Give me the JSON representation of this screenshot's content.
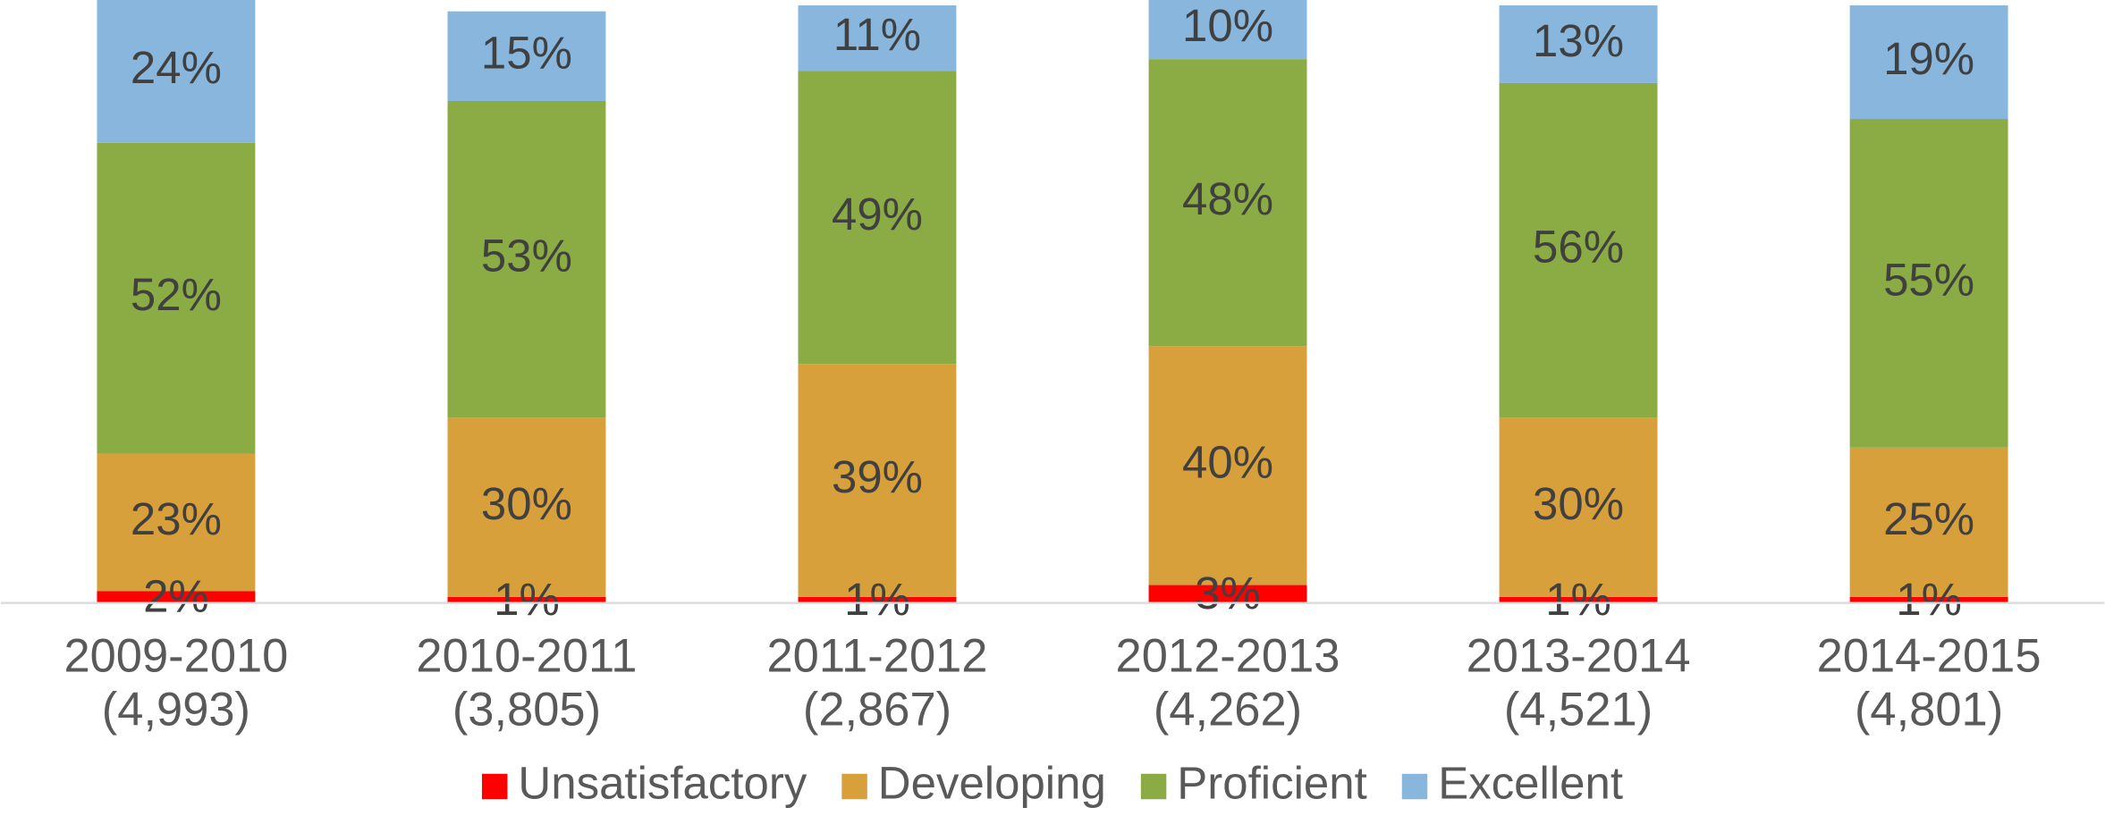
{
  "chart_data": {
    "type": "stacked_bar",
    "categories": [
      [
        "2009-2010",
        "(4,993)"
      ],
      [
        "2010-2011",
        "(3,805)"
      ],
      [
        "2011-2012",
        "(2,867)"
      ],
      [
        "2012-2013",
        "(4,262)"
      ],
      [
        "2013-2014",
        "(4,521)"
      ],
      [
        "2014-2015",
        "(4,801)"
      ]
    ],
    "ylim": [
      0,
      100
    ],
    "legend": "bottom",
    "series": [
      {
        "name": "Unsatisfactory",
        "color": "#ff0000",
        "values": [
          2,
          1,
          1,
          3,
          1,
          1
        ],
        "value_labels": [
          "2%",
          "1%",
          "1%",
          "3%",
          "1%",
          "1%"
        ]
      },
      {
        "name": "Developing",
        "color": "#d8a03a",
        "values": [
          23,
          30,
          39,
          40,
          30,
          25
        ],
        "value_labels": [
          "23%",
          "30%",
          "39%",
          "40%",
          "30%",
          "25%"
        ]
      },
      {
        "name": "Proficient",
        "color": "#8bab44",
        "values": [
          52,
          53,
          49,
          48,
          56,
          55
        ],
        "value_labels": [
          "52%",
          "53%",
          "49%",
          "48%",
          "56%",
          "55%"
        ]
      },
      {
        "name": "Excellent",
        "color": "#88b6dc",
        "values": [
          24,
          15,
          11,
          10,
          13,
          19
        ],
        "value_labels": [
          "24%",
          "15%",
          "11%",
          "10%",
          "13%",
          "19%"
        ]
      }
    ]
  }
}
